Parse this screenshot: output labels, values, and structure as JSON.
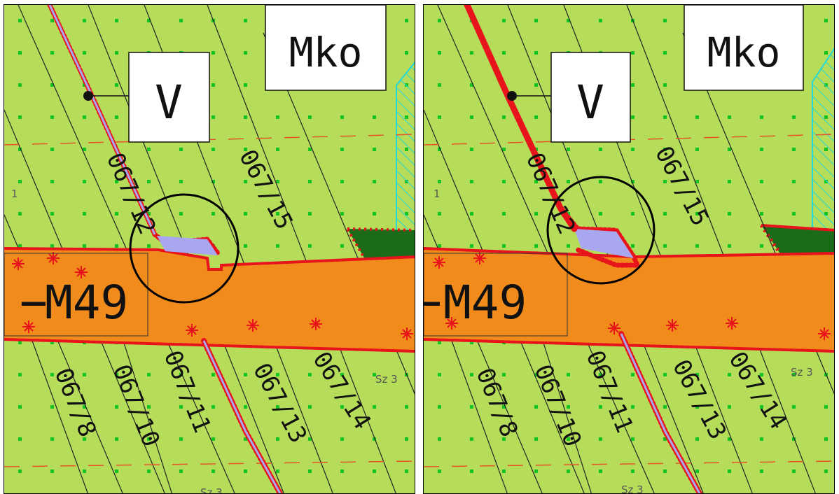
{
  "colors": {
    "background": "#b5dd5a",
    "road_fill": "#f08b1c",
    "road_edge": "#e8141c",
    "boundary_red": "#e8141c",
    "channel_fill": "#a9a7f0",
    "dot_green": "#12c422",
    "forest": "#1b6b1b",
    "hatch": "#22d8d8",
    "parcel_line": "#222222",
    "dash_line": "#e8542a"
  },
  "panels": [
    {
      "id": "left",
      "zone_labels": {
        "mko": "Mko",
        "v": "V",
        "road": "M49"
      },
      "parcels": {
        "p_15": "067/15",
        "p_12": "067/12",
        "p_8": "067/8",
        "p_10": "067/10",
        "p_11": "067/11",
        "p_13": "067/13",
        "p_14": "067/14"
      },
      "small_labels": {
        "sz_right": "Sz 3",
        "sz_bottom": "Sz 3",
        "one": "1"
      },
      "highlight": "circle-marker"
    },
    {
      "id": "right",
      "zone_labels": {
        "mko": "Mko",
        "v": "V",
        "road": "M49"
      },
      "parcels": {
        "p_15": "067/15",
        "p_12": "067/12",
        "p_8": "067/8",
        "p_10": "067/10",
        "p_11": "067/11",
        "p_13": "067/13",
        "p_14": "067/14"
      },
      "small_labels": {
        "sz_right": "Sz 3",
        "sz_bottom": "Sz 3",
        "one": "1"
      },
      "highlight": "circle-marker"
    }
  ]
}
